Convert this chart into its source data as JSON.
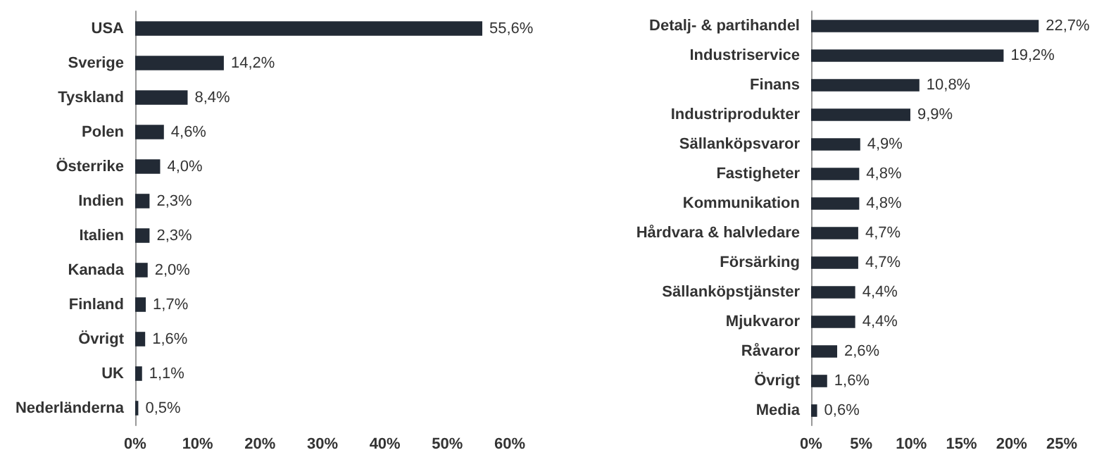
{
  "chart_data": [
    {
      "type": "bar",
      "orientation": "horizontal",
      "categories": [
        "USA",
        "Sverige",
        "Tyskland",
        "Polen",
        "Österrike",
        "Indien",
        "Italien",
        "Kanada",
        "Finland",
        "Övrigt",
        "UK",
        "Nederländerna"
      ],
      "values": [
        55.6,
        14.2,
        8.4,
        4.6,
        4.0,
        2.3,
        2.3,
        2.0,
        1.7,
        1.6,
        1.1,
        0.5
      ],
      "value_labels": [
        "55,6%",
        "14,2%",
        "8,4%",
        "4,6%",
        "4,0%",
        "2,3%",
        "2,3%",
        "2,0%",
        "1,7%",
        "1,6%",
        "1,1%",
        "0,5%"
      ],
      "color": "#222a35",
      "xlim": [
        0,
        60
      ],
      "xticks": [
        {
          "value": 0,
          "label": "0%"
        },
        {
          "value": 10,
          "label": "10%"
        },
        {
          "value": 20,
          "label": "20%"
        },
        {
          "value": 30,
          "label": "30%"
        },
        {
          "value": 40,
          "label": "40%"
        },
        {
          "value": 50,
          "label": "50%"
        },
        {
          "value": 60,
          "label": "60%"
        }
      ],
      "grid": false
    },
    {
      "type": "bar",
      "orientation": "horizontal",
      "categories": [
        "Detalj- & partihandel",
        "Industriservice",
        "Finans",
        "Industriprodukter",
        "Sällanköpsvaror",
        "Fastigheter",
        "Kommunikation",
        "Hårdvara & halvledare",
        "Försärking",
        "Sällanköpstjänster",
        "Mjukvaror",
        "Råvaror",
        "Övrigt",
        "Media"
      ],
      "values": [
        22.7,
        19.2,
        10.8,
        9.9,
        4.9,
        4.8,
        4.8,
        4.7,
        4.7,
        4.4,
        4.4,
        2.6,
        1.6,
        0.6
      ],
      "value_labels": [
        "22,7%",
        "19,2%",
        "10,8%",
        "9,9%",
        "4,9%",
        "4,8%",
        "4,8%",
        "4,7%",
        "4,7%",
        "4,4%",
        "4,4%",
        "2,6%",
        "1,6%",
        "0,6%"
      ],
      "color": "#222a35",
      "xlim": [
        0,
        25
      ],
      "xticks": [
        {
          "value": 0,
          "label": "0%"
        },
        {
          "value": 5,
          "label": "5%"
        },
        {
          "value": 10,
          "label": "10%"
        },
        {
          "value": 15,
          "label": "15%"
        },
        {
          "value": 20,
          "label": "20%"
        },
        {
          "value": 25,
          "label": "25%"
        }
      ],
      "grid": false
    }
  ]
}
